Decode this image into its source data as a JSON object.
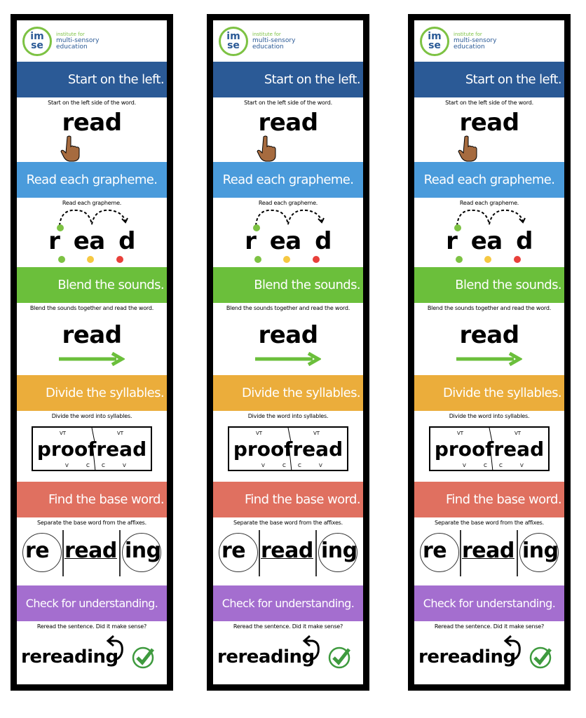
{
  "logo": {
    "mark_top": "im",
    "mark_bottom": "se",
    "line1": "institute for",
    "line2": "multi-sensory",
    "line3": "education"
  },
  "colors": {
    "step1": "#2B5A96",
    "step2": "#4A9BDB",
    "step3": "#6BBF3B",
    "step4": "#EBAD3B",
    "step5": "#E07060",
    "step6": "#A46ECF",
    "check": "#3E9A3E"
  },
  "steps": [
    {
      "title": "Start on the left.",
      "caption": "Start on the left side of the word.",
      "word": "read",
      "icon": "pointing-hand-icon"
    },
    {
      "title": "Read each grapheme.",
      "caption": "Read each grapheme.",
      "graphemes": [
        "r",
        "ea",
        "d"
      ],
      "dot_colors": [
        "#7DC243",
        "#F5C842",
        "#E8403A"
      ]
    },
    {
      "title": "Blend the sounds.",
      "caption": "Blend the sounds together and read the word.",
      "word": "read",
      "icon": "right-arrow-icon"
    },
    {
      "title": "Divide the syllables.",
      "caption": "Divide the word into syllables.",
      "syllables": [
        "proof",
        "read"
      ],
      "top_marks": [
        "VT",
        "VT"
      ],
      "bottom_marks": [
        "V",
        "C",
        "C",
        "V"
      ]
    },
    {
      "title": "Find the base word.",
      "caption": "Separate the base word from the affixes.",
      "prefix": "re",
      "base": "read",
      "suffix": "ing"
    },
    {
      "title": "Check for understanding.",
      "caption": "Reread the sentence. Did it make sense?",
      "word": "rereading",
      "icon": "checkmark-circle-icon"
    }
  ]
}
